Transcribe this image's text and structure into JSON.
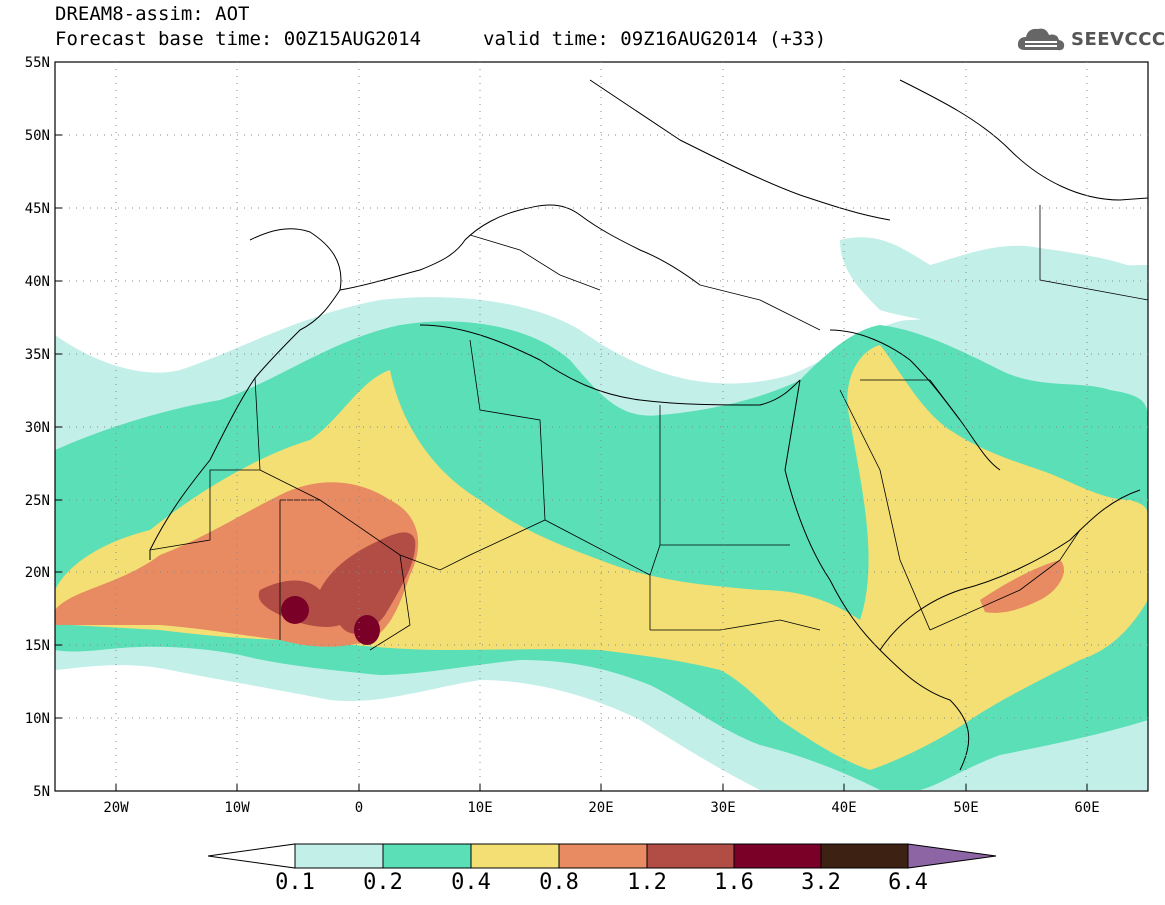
{
  "header": {
    "line1": "DREAM8-assim: AOT",
    "line2_base": "Forecast base time: 00Z15AUG2014",
    "line2_valid": "valid time: 09Z16AUG2014 (+33)"
  },
  "logo": {
    "text": "SEEVCCC",
    "icon": "cloud-icon"
  },
  "map": {
    "lat_labels": [
      "55N",
      "50N",
      "45N",
      "40N",
      "35N",
      "30N",
      "25N",
      "20N",
      "15N",
      "10N",
      "5N"
    ],
    "lon_labels": [
      "20W",
      "10W",
      "0",
      "10E",
      "20E",
      "30E",
      "40E",
      "50E",
      "60E"
    ],
    "lon_range": [
      -25,
      65
    ],
    "lat_range": [
      5,
      55
    ]
  },
  "colorbar": {
    "labels": [
      "0.1",
      "0.2",
      "0.4",
      "0.8",
      "1.2",
      "1.6",
      "3.2",
      "6.4"
    ],
    "colors": [
      "#c3efe9",
      "#5adfb6",
      "#f3df74",
      "#e88a62",
      "#b24d45",
      "#7a0028",
      "#3d2214",
      "#8d65a5"
    ]
  }
}
